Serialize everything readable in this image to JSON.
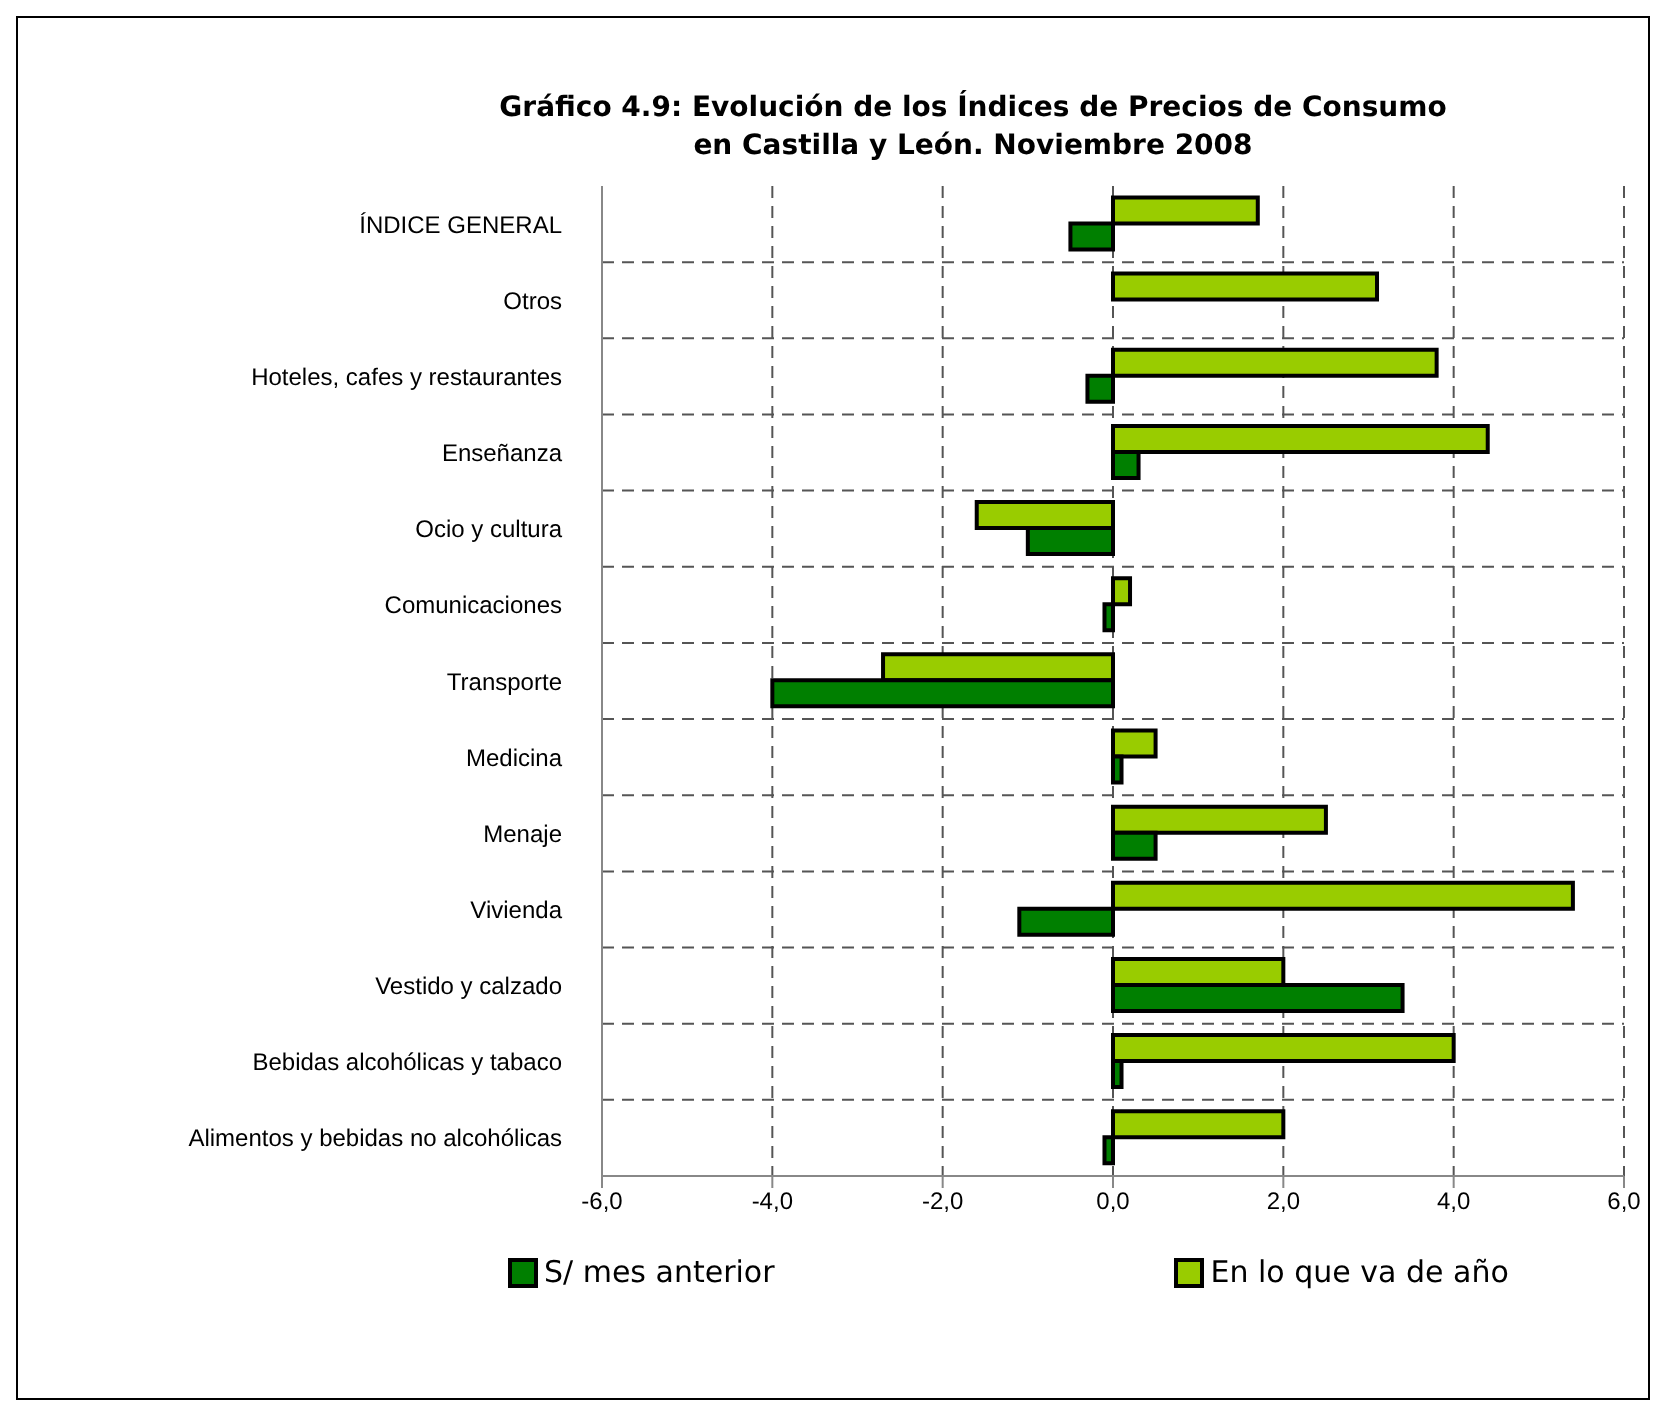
{
  "chart_data": {
    "type": "bar",
    "orientation": "horizontal",
    "title": "Gráfico 4.9: Evolución de los Índices de Precios de Consumo en Castilla y León. Noviembre 2008",
    "categories": [
      "ÍNDICE GENERAL",
      "Otros",
      "Hoteles, cafes y restaurantes",
      "Enseñanza",
      "Ocio y cultura",
      "Comunicaciones",
      "Transporte",
      "Medicina",
      "Menaje",
      "Vivienda",
      "Vestido y calzado",
      "Bebidas alcohólicas y tabaco",
      "Alimentos y bebidas no alcohólicas"
    ],
    "series": [
      {
        "name": "S/ mes anterior",
        "color": "#007f00",
        "values": [
          -0.5,
          0.0,
          -0.3,
          0.3,
          -1.0,
          -0.1,
          -4.0,
          0.1,
          0.5,
          -1.1,
          3.4,
          0.1,
          -0.1
        ]
      },
      {
        "name": "En lo que va de año",
        "color": "#99cc00",
        "values": [
          1.7,
          3.1,
          3.8,
          4.4,
          -1.6,
          0.2,
          -2.7,
          0.5,
          2.5,
          5.4,
          2.0,
          4.0,
          2.0
        ]
      }
    ],
    "xlim": [
      -6,
      6
    ],
    "xticks": [
      {
        "value": -6,
        "label": "-6,0"
      },
      {
        "value": -4,
        "label": "-4,0"
      },
      {
        "value": -2,
        "label": "-2,0"
      },
      {
        "value": 0,
        "label": "0,0"
      },
      {
        "value": 2,
        "label": "2,0"
      },
      {
        "value": 4,
        "label": "4,0"
      },
      {
        "value": 6,
        "label": "6,0"
      }
    ],
    "grid": true,
    "legend": "bottom"
  }
}
